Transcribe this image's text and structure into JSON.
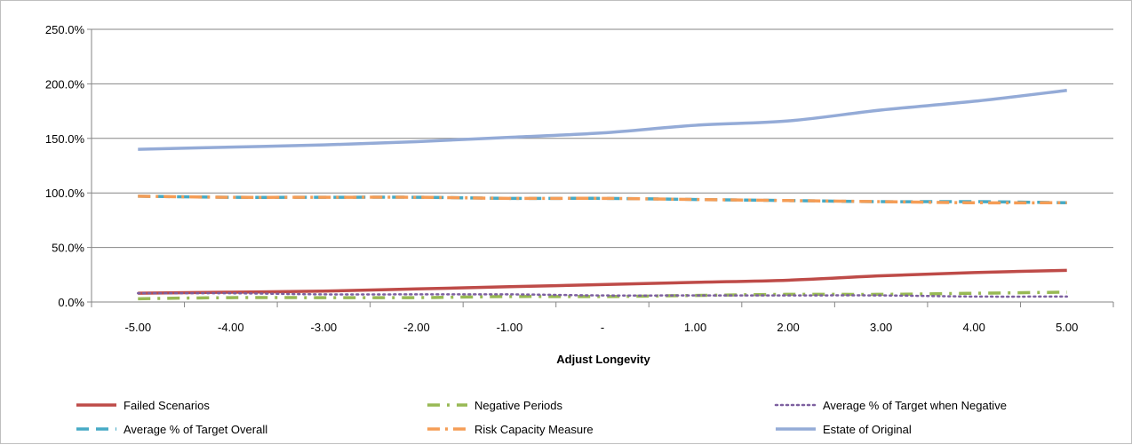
{
  "chart_data": {
    "type": "line",
    "title": "",
    "xlabel": "Adjust Longevity",
    "ylabel": "",
    "categories": [
      "-5.00",
      "-4.00",
      "-3.00",
      "-2.00",
      "-1.00",
      "-",
      "1.00",
      "2.00",
      "3.00",
      "4.00",
      "5.00"
    ],
    "yticks": [
      "0.0%",
      "50.0%",
      "100.0%",
      "150.0%",
      "200.0%",
      "250.0%"
    ],
    "ylim": [
      0,
      250
    ],
    "y_unit": "%",
    "grid": "horizontal",
    "legend_position": "bottom",
    "series": [
      {
        "name": "Failed Scenarios",
        "color": "#be4b48",
        "style": "solid",
        "values": [
          8,
          9,
          10,
          12,
          14,
          16,
          18,
          20,
          24,
          27,
          29
        ]
      },
      {
        "name": "Negative Periods",
        "color": "#98b954",
        "style": "dash-dot",
        "values": [
          3,
          4,
          4,
          4,
          5,
          5,
          6,
          7,
          7,
          8,
          9
        ]
      },
      {
        "name": "Average % of Target when Negative",
        "color": "#7d60a0",
        "style": "dotted",
        "values": [
          8,
          8,
          7,
          7,
          7,
          6,
          6,
          6,
          6,
          5,
          5
        ]
      },
      {
        "name": "Average % of Target Overall",
        "color": "#46aac5",
        "style": "dashed",
        "values": [
          97,
          96,
          96,
          96,
          95,
          95,
          94,
          93,
          92,
          92,
          91
        ]
      },
      {
        "name": "Risk Capacity Measure",
        "color": "#f59d56",
        "style": "long-dash-dot",
        "values": [
          97,
          96,
          96,
          96,
          95,
          95,
          94,
          93,
          92,
          91,
          91
        ]
      },
      {
        "name": "Estate of Original",
        "color": "#94abd7",
        "style": "solid",
        "values": [
          140,
          142,
          144,
          147,
          151,
          155,
          162,
          166,
          176,
          184,
          194
        ]
      }
    ]
  }
}
